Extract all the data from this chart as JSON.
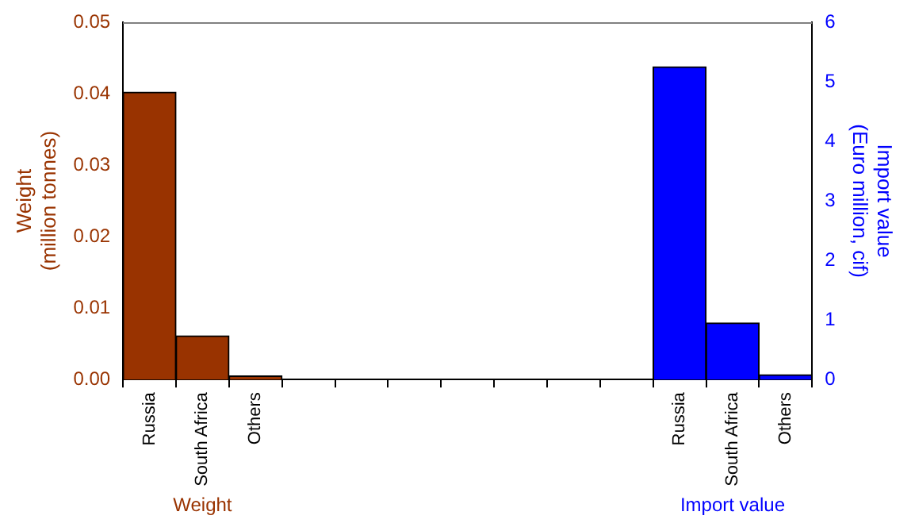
{
  "chart_data": {
    "type": "bar",
    "categories": [
      "Russia",
      "South Africa",
      "Others",
      null,
      null,
      null,
      null,
      null,
      null,
      null,
      "Russia",
      "South Africa",
      "Others"
    ],
    "series": [
      {
        "name": "Weight",
        "color": "#993300",
        "values": [
          0.0402,
          0.0061,
          0.0005,
          null,
          null,
          null,
          null,
          null,
          null,
          null,
          null,
          null,
          null
        ]
      },
      {
        "name": "Import value",
        "color": "#0000ff",
        "axis": "y2",
        "values": [
          null,
          null,
          null,
          null,
          null,
          null,
          null,
          null,
          null,
          null,
          5.25,
          0.95,
          0.08
        ]
      }
    ],
    "ylabel": "Weight (million tonnes)",
    "y2label": "Import value (Euro million, cif)",
    "ylim": [
      0,
      0.05
    ],
    "yticks": [
      {
        "value": 0,
        "label": "0.00"
      },
      {
        "value": 0.01,
        "label": "0.01"
      },
      {
        "value": 0.02,
        "label": "0.02"
      },
      {
        "value": 0.03,
        "label": "0.03"
      },
      {
        "value": 0.04,
        "label": "0.04"
      },
      {
        "value": 0.05,
        "label": "0.05"
      }
    ],
    "y2lim": [
      0,
      6
    ],
    "y2ticks": [
      0,
      1,
      2,
      3,
      4,
      5,
      6
    ],
    "grid": false,
    "legend": false
  }
}
